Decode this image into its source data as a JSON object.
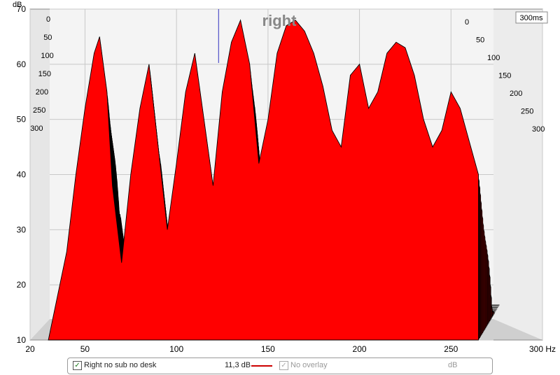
{
  "chart_data": {
    "type": "area",
    "subtype": "waterfall",
    "title": "right",
    "x_unit": "Hz",
    "y_unit": "dB",
    "xlim": [
      20,
      300
    ],
    "ylim": [
      10,
      70
    ],
    "x_ticks": [
      "20",
      "50",
      "100",
      "150",
      "200",
      "250",
      "300 Hz"
    ],
    "y_ticks": [
      "10",
      "20",
      "30",
      "40",
      "50",
      "60",
      "70"
    ],
    "time_ticks": [
      "0",
      "50",
      "100",
      "150",
      "200",
      "250",
      "300"
    ],
    "time_end_label": "300ms",
    "slice_count": 30,
    "front_slice": {
      "x": [
        30,
        35,
        40,
        45,
        50,
        55,
        58,
        62,
        65,
        70,
        75,
        80,
        85,
        90,
        95,
        100,
        105,
        110,
        115,
        120,
        125,
        130,
        135,
        140,
        145,
        150,
        155,
        160,
        165,
        170,
        175,
        180,
        185,
        190,
        195,
        200,
        205,
        210,
        215,
        220,
        225,
        230,
        235,
        240,
        245,
        250,
        255,
        260,
        265
      ],
      "y": [
        10,
        18,
        26,
        40,
        52,
        62,
        65,
        55,
        38,
        24,
        40,
        52,
        60,
        45,
        30,
        42,
        55,
        62,
        50,
        38,
        55,
        64,
        68,
        60,
        42,
        50,
        62,
        67,
        68,
        66,
        62,
        56,
        48,
        45,
        58,
        60,
        52,
        55,
        62,
        64,
        63,
        58,
        50,
        45,
        48,
        55,
        52,
        46,
        40
      ]
    },
    "grid": true,
    "colors": {
      "fill": "#ff0000",
      "edge": "#000000",
      "wall": "#e8e8e8",
      "floor": "#cfcfcf"
    }
  },
  "legend": {
    "series_name": "Right no sub no desk",
    "series_checked": true,
    "series_color": "#cc0000",
    "series_value": "11,3 dB",
    "overlay_label": "No overlay",
    "overlay_checked": true,
    "unit": "dB"
  }
}
